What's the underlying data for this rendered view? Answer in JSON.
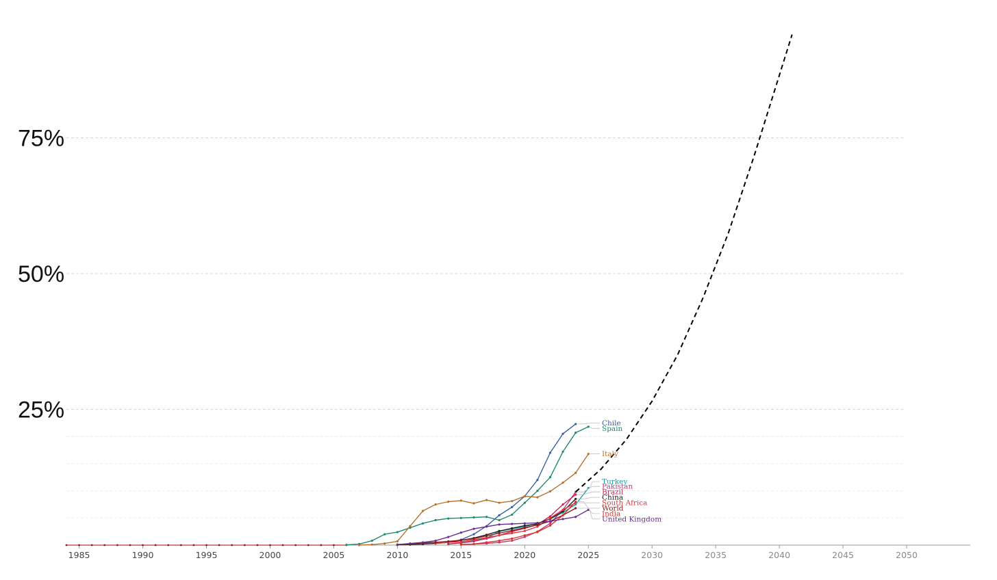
{
  "chart_data": {
    "type": "line",
    "title": "",
    "xlabel": "",
    "ylabel": "",
    "xlim": [
      1984,
      2055
    ],
    "ylim": [
      0,
      100
    ],
    "y_major_ticks": [
      {
        "value": 25,
        "label": "25%"
      },
      {
        "value": 50,
        "label": "50%"
      },
      {
        "value": 75,
        "label": "75%"
      }
    ],
    "y_minor_gridlines": [
      5,
      10,
      15,
      20
    ],
    "x_ticks": [
      {
        "value": 1985,
        "label": "1985",
        "style": "historical"
      },
      {
        "value": 1990,
        "label": "1990",
        "style": "historical"
      },
      {
        "value": 1995,
        "label": "1995",
        "style": "historical"
      },
      {
        "value": 2000,
        "label": "2000",
        "style": "historical"
      },
      {
        "value": 2005,
        "label": "2005",
        "style": "historical"
      },
      {
        "value": 2010,
        "label": "2010",
        "style": "historical"
      },
      {
        "value": 2015,
        "label": "2015",
        "style": "historical"
      },
      {
        "value": 2020,
        "label": "2020",
        "style": "historical"
      },
      {
        "value": 2025,
        "label": "2025",
        "style": "historical"
      },
      {
        "value": 2030,
        "label": "2030",
        "style": "projection"
      },
      {
        "value": 2035,
        "label": "2035",
        "style": "projection"
      },
      {
        "value": 2040,
        "label": "2040",
        "style": "projection"
      },
      {
        "value": 2045,
        "label": "2045",
        "style": "projection"
      },
      {
        "value": 2050,
        "label": "2050",
        "style": "projection"
      }
    ],
    "baseline": {
      "x_start": 1984,
      "x_end": 2006,
      "value": 0
    },
    "series": [
      {
        "name": "Chile",
        "color": "#3a5fa0",
        "label_value": 22.5,
        "x": [
          2014,
          2015,
          2016,
          2017,
          2018,
          2019,
          2020,
          2021,
          2022,
          2023,
          2024
        ],
        "values": [
          0.5,
          1.0,
          2.0,
          3.5,
          5.5,
          7.0,
          9.0,
          12.0,
          17.0,
          20.5,
          22.3
        ]
      },
      {
        "name": "Spain",
        "color": "#1f8a70",
        "label_value": 21.5,
        "x": [
          2006,
          2007,
          2008,
          2009,
          2010,
          2011,
          2012,
          2013,
          2014,
          2015,
          2016,
          2017,
          2018,
          2019,
          2020,
          2021,
          2022,
          2023,
          2024,
          2025
        ],
        "values": [
          0.05,
          0.2,
          0.8,
          2.0,
          2.4,
          3.2,
          4.0,
          4.6,
          4.9,
          5.0,
          5.1,
          5.2,
          4.6,
          5.6,
          7.8,
          10.0,
          12.5,
          17.2,
          20.7,
          21.8
        ]
      },
      {
        "name": "Italy",
        "color": "#b5722d",
        "label_value": 16.8,
        "x": [
          2007,
          2008,
          2009,
          2010,
          2011,
          2012,
          2013,
          2014,
          2015,
          2016,
          2017,
          2018,
          2019,
          2020,
          2021,
          2022,
          2023,
          2024,
          2025
        ],
        "values": [
          0.02,
          0.1,
          0.3,
          0.7,
          3.5,
          6.3,
          7.5,
          8.0,
          8.2,
          7.7,
          8.3,
          7.8,
          8.1,
          9.0,
          8.8,
          9.9,
          11.5,
          13.3,
          16.8
        ]
      },
      {
        "name": "Turkey",
        "color": "#1a9da8",
        "label_value": 11.7,
        "x": [
          2014,
          2015,
          2016,
          2017,
          2018,
          2019,
          2020,
          2021,
          2022,
          2023,
          2024,
          2025
        ],
        "values": [
          0.2,
          0.4,
          0.8,
          1.3,
          2.5,
          3.0,
          3.4,
          4.0,
          4.8,
          6.0,
          7.5,
          10.5
        ]
      },
      {
        "name": "Pakistan",
        "color": "#c0397b",
        "label_value": 10.8,
        "x": [
          2015,
          2016,
          2017,
          2018,
          2019,
          2020,
          2021,
          2022,
          2023,
          2024
        ],
        "values": [
          0.1,
          0.2,
          0.3,
          0.5,
          0.8,
          1.5,
          2.5,
          4.0,
          6.5,
          9.8
        ]
      },
      {
        "name": "Brazil",
        "color": "#c2255c",
        "label_value": 9.8,
        "x": [
          2014,
          2015,
          2016,
          2017,
          2018,
          2019,
          2020,
          2021,
          2022,
          2023,
          2024
        ],
        "values": [
          0.2,
          0.4,
          0.7,
          1.2,
          1.8,
          2.5,
          3.1,
          3.8,
          5.3,
          7.5,
          9.3
        ]
      },
      {
        "name": "China",
        "color": "#222222",
        "label_value": 8.8,
        "x": [
          2010,
          2011,
          2012,
          2013,
          2014,
          2015,
          2016,
          2017,
          2018,
          2019,
          2020,
          2021,
          2022,
          2023,
          2024
        ],
        "values": [
          0.05,
          0.1,
          0.2,
          0.3,
          0.5,
          0.9,
          1.3,
          1.9,
          2.6,
          3.1,
          3.6,
          3.9,
          4.9,
          6.2,
          8.5
        ]
      },
      {
        "name": "South Africa",
        "color": "#e03a3e",
        "label_value": 7.8,
        "x": [
          2013,
          2014,
          2015,
          2016,
          2017,
          2018,
          2019,
          2020,
          2021,
          2022,
          2023,
          2024
        ],
        "values": [
          0.3,
          0.5,
          0.6,
          1.0,
          1.4,
          1.8,
          2.2,
          2.6,
          3.4,
          5.0,
          6.5,
          7.8
        ]
      },
      {
        "name": "World",
        "color": "#8b1a1a",
        "label_value": 6.8,
        "x": [
          2010,
          2011,
          2012,
          2013,
          2014,
          2015,
          2016,
          2017,
          2018,
          2019,
          2020,
          2021,
          2022,
          2023,
          2024
        ],
        "values": [
          0.1,
          0.2,
          0.4,
          0.5,
          0.7,
          0.9,
          1.2,
          1.7,
          2.2,
          2.7,
          3.2,
          3.7,
          4.4,
          5.5,
          6.8
        ]
      },
      {
        "name": "India",
        "color": "#d9342b",
        "label_value": 5.8,
        "x": [
          2015,
          2016,
          2017,
          2018,
          2019,
          2020,
          2021,
          2022,
          2023,
          2024
        ],
        "values": [
          0.1,
          0.2,
          0.5,
          0.8,
          1.2,
          1.8,
          2.4,
          3.6,
          5.5,
          8.0
        ]
      },
      {
        "name": "United Kingdom",
        "color": "#6a2c91",
        "label_value": 4.8,
        "x": [
          2010,
          2011,
          2012,
          2013,
          2014,
          2015,
          2016,
          2017,
          2018,
          2019,
          2020,
          2021,
          2022,
          2023,
          2024,
          2025
        ],
        "values": [
          0.1,
          0.3,
          0.5,
          0.8,
          1.5,
          2.3,
          3.0,
          3.4,
          3.8,
          3.9,
          4.0,
          4.1,
          4.4,
          4.8,
          5.2,
          6.5
        ]
      }
    ],
    "projection": {
      "name": "projection",
      "style": "dashed",
      "color": "#000000",
      "x": [
        2024,
        2026,
        2028,
        2030,
        2032,
        2034,
        2036,
        2038,
        2040,
        2041
      ],
      "values": [
        9.8,
        14.0,
        19.5,
        26.5,
        35.0,
        45.5,
        57.5,
        71.5,
        86.5,
        94.0
      ]
    }
  }
}
